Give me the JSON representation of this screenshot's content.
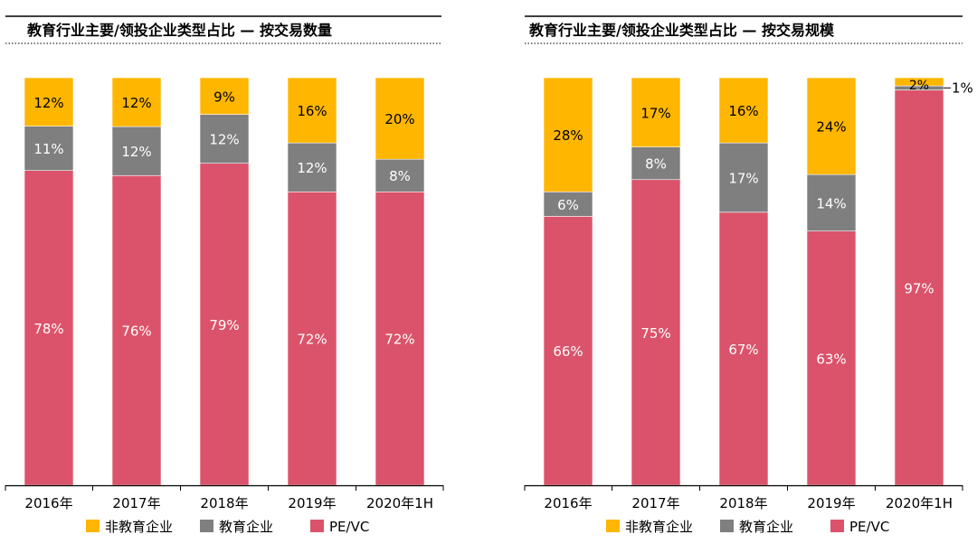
{
  "colors": {
    "non_edu": "#FFB600",
    "edu": "#7F7F7F",
    "pevc": "#DB536A",
    "text": "#000000",
    "label_light": "#FFFFFF"
  },
  "chart_data": [
    {
      "type": "bar",
      "stacked": true,
      "percent": true,
      "title": "教育行业主要/领投企业类型占比 — 按交易数量",
      "categories": [
        "2016年",
        "2017年",
        "2018年",
        "2019年",
        "2020年1H"
      ],
      "series": [
        {
          "name": "PE/VC",
          "color": "pevc",
          "values": [
            78,
            76,
            79,
            72,
            72
          ],
          "labels": [
            "78%",
            "76%",
            "79%",
            "72%",
            "72%"
          ]
        },
        {
          "name": "教育企业",
          "color": "edu",
          "values": [
            11,
            12,
            12,
            12,
            8
          ],
          "labels": [
            "11%",
            "12%",
            "12%",
            "12%",
            "8%"
          ]
        },
        {
          "name": "非教育企业",
          "color": "non_edu",
          "values": [
            12,
            12,
            9,
            16,
            20
          ],
          "labels": [
            "12%",
            "12%",
            "9%",
            "16%",
            "20%"
          ]
        }
      ],
      "ylim": [
        0,
        100
      ],
      "legend": [
        "非教育企业",
        "教育企业",
        "PE/VC"
      ],
      "legend_position": "bottom"
    },
    {
      "type": "bar",
      "stacked": true,
      "percent": true,
      "title": "教育行业主要/领投企业类型占比 — 按交易规模",
      "categories": [
        "2016年",
        "2017年",
        "2018年",
        "2019年",
        "2020年1H"
      ],
      "series": [
        {
          "name": "PE/VC",
          "color": "pevc",
          "values": [
            66,
            75,
            67,
            63,
            97
          ],
          "labels": [
            "66%",
            "75%",
            "67%",
            "63%",
            "97%"
          ]
        },
        {
          "name": "教育企业",
          "color": "edu",
          "values": [
            6,
            8,
            17,
            14,
            1
          ],
          "labels": [
            "6%",
            "8%",
            "17%",
            "14%",
            "1%"
          ]
        },
        {
          "name": "非教育企业",
          "color": "non_edu",
          "values": [
            28,
            17,
            16,
            24,
            2
          ],
          "labels": [
            "28%",
            "17%",
            "16%",
            "24%",
            "2%"
          ]
        }
      ],
      "ylim": [
        0,
        100
      ],
      "legend": [
        "非教育企业",
        "教育企业",
        "PE/VC"
      ],
      "legend_position": "bottom"
    }
  ]
}
